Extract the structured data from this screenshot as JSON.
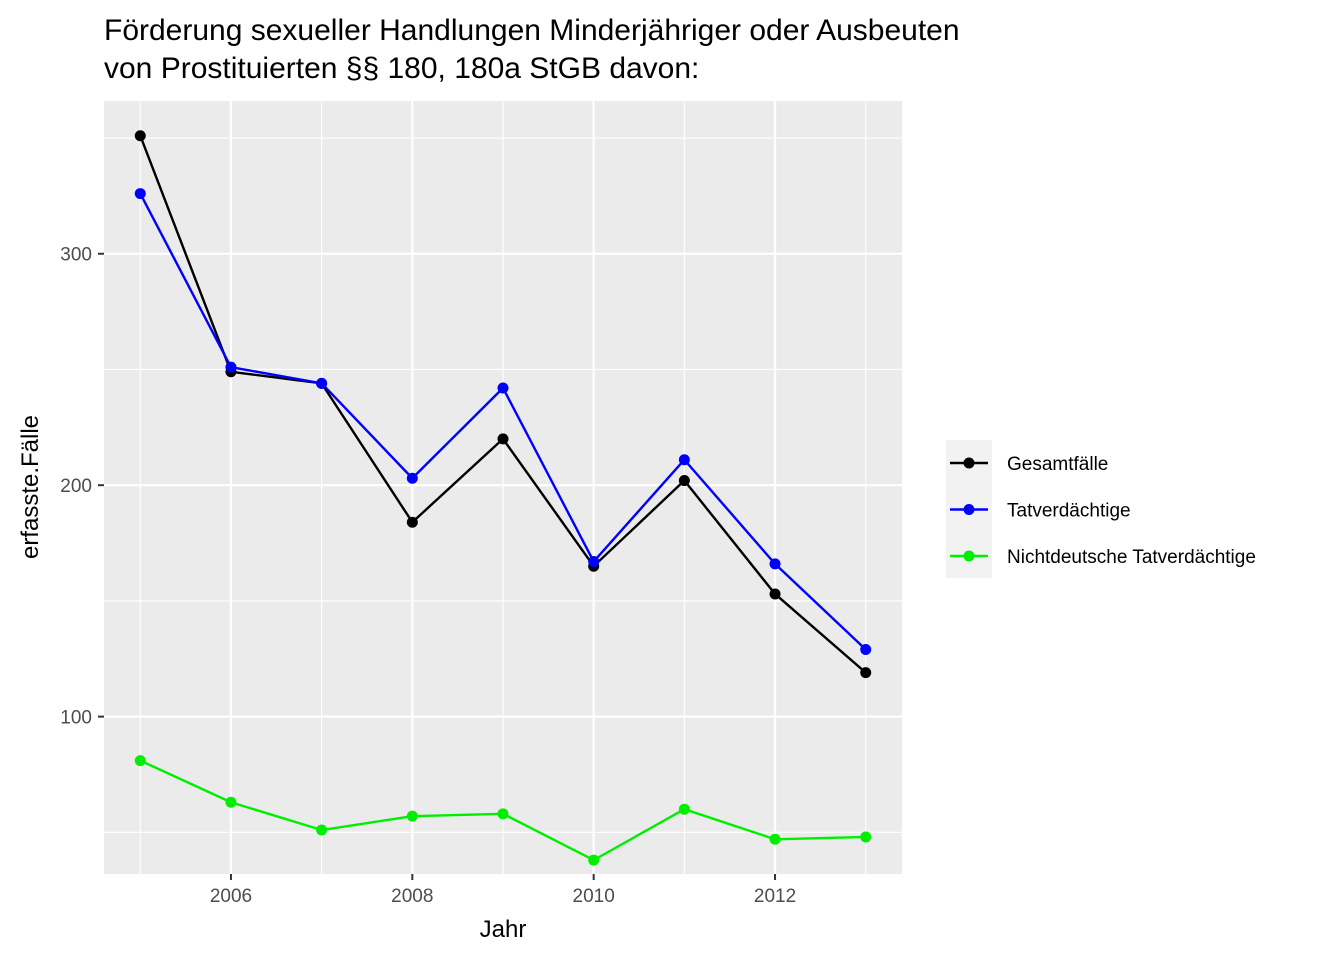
{
  "chart_data": {
    "type": "line",
    "title_lines": [
      "Förderung sexueller Handlungen Minderjähriger oder Ausbeuten",
      "von Prostituierten §§ 180, 180a StGB davon:"
    ],
    "xlabel": "Jahr",
    "ylabel": "erfasste.Fälle",
    "x": [
      2005,
      2006,
      2007,
      2008,
      2009,
      2010,
      2011,
      2012,
      2013
    ],
    "xlim": [
      2004.6,
      2013.4
    ],
    "ylim": [
      32,
      366
    ],
    "x_ticks": [
      2006,
      2008,
      2010,
      2012
    ],
    "x_tick_labels": [
      "2006",
      "2008",
      "2010",
      "2012"
    ],
    "y_ticks": [
      100,
      200,
      300
    ],
    "y_tick_labels": [
      "100",
      "200",
      "300"
    ],
    "grid": true,
    "legend_position": "right",
    "series": [
      {
        "name": "Gesamtfälle",
        "color": "#000000",
        "values": [
          351,
          249,
          244,
          184,
          220,
          165,
          202,
          153,
          119
        ]
      },
      {
        "name": "Tatverdächtige",
        "color": "#0000ff",
        "values": [
          326,
          251,
          244,
          203,
          242,
          167,
          211,
          166,
          129
        ]
      },
      {
        "name": "Nichtdeutsche Tatverdächtige",
        "color": "#00ee00",
        "values": [
          81,
          63,
          51,
          57,
          58,
          38,
          60,
          47,
          48
        ]
      }
    ]
  }
}
